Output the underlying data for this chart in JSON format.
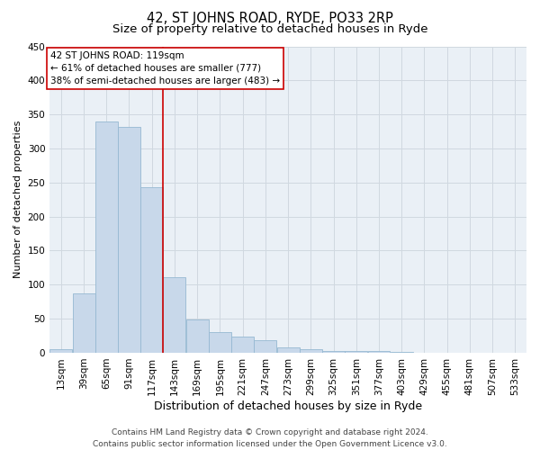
{
  "title": "42, ST JOHNS ROAD, RYDE, PO33 2RP",
  "subtitle": "Size of property relative to detached houses in Ryde",
  "xlabel": "Distribution of detached houses by size in Ryde",
  "ylabel": "Number of detached properties",
  "bar_color": "#c8d8ea",
  "bar_edge_color": "#96b8d2",
  "grid_color": "#d0d8e0",
  "background_color": "#eaf0f6",
  "vline_color": "#cc0000",
  "categories": [
    "13sqm",
    "39sqm",
    "65sqm",
    "91sqm",
    "117sqm",
    "143sqm",
    "169sqm",
    "195sqm",
    "221sqm",
    "247sqm",
    "273sqm",
    "299sqm",
    "325sqm",
    "351sqm",
    "377sqm",
    "403sqm",
    "429sqm",
    "455sqm",
    "481sqm",
    "507sqm",
    "533sqm"
  ],
  "bin_starts": [
    13,
    39,
    65,
    91,
    117,
    143,
    169,
    195,
    221,
    247,
    273,
    299,
    325,
    351,
    377,
    403,
    429,
    455,
    481,
    507,
    533
  ],
  "bin_width": 26,
  "values": [
    5,
    87,
    340,
    332,
    243,
    111,
    49,
    31,
    24,
    19,
    8,
    5,
    3,
    3,
    2,
    1,
    0,
    0,
    0,
    0,
    0
  ],
  "ylim": [
    0,
    450
  ],
  "yticks": [
    0,
    50,
    100,
    150,
    200,
    250,
    300,
    350,
    400,
    450
  ],
  "vline_x": 143,
  "annotation_text_line1": "42 ST JOHNS ROAD: 119sqm",
  "annotation_text_line2": "← 61% of detached houses are smaller (777)",
  "annotation_text_line3": "38% of semi-detached houses are larger (483) →",
  "footer_line1": "Contains HM Land Registry data © Crown copyright and database right 2024.",
  "footer_line2": "Contains public sector information licensed under the Open Government Licence v3.0.",
  "title_fontsize": 10.5,
  "subtitle_fontsize": 9.5,
  "xlabel_fontsize": 9,
  "ylabel_fontsize": 8,
  "tick_fontsize": 7.5,
  "annotation_fontsize": 7.5,
  "footer_fontsize": 6.5
}
